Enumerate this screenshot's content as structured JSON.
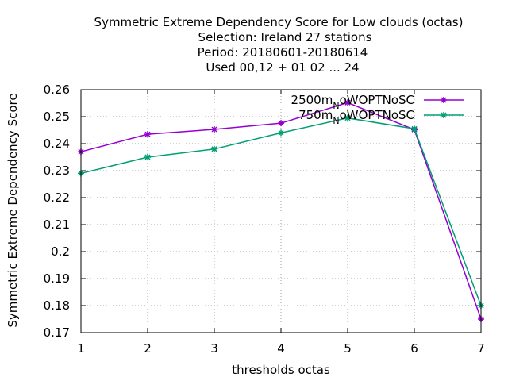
{
  "chart_data": {
    "type": "line",
    "title_lines": [
      "Symmetric Extreme Dependency Score  for Low clouds (octas)",
      "Selection: Ireland     27 stations",
      "Period: 20180601-20180614",
      "Used  00,12  + 01 02 ... 24"
    ],
    "xlabel": "thresholds octas",
    "ylabel": "Symmetric Extreme Dependency Score",
    "x": [
      1,
      2,
      3,
      4,
      5,
      6,
      7
    ],
    "xlim": [
      1,
      7
    ],
    "ylim": [
      0.17,
      0.26
    ],
    "xticks": [
      "1",
      "2",
      "3",
      "4",
      "5",
      "6",
      "7"
    ],
    "yticks": [
      "0.17",
      "0.18",
      "0.19",
      "0.2",
      "0.21",
      "0.22",
      "0.23",
      "0.24",
      "0.25",
      "0.26"
    ],
    "grid": true,
    "legend_position": "top-right",
    "series": [
      {
        "name": "2500m_NoWOPTNoSC",
        "legend_main": "2500m",
        "legend_sub": "N",
        "legend_rest": "oWOPTNoSC",
        "color": "#9400d3",
        "values": [
          0.237,
          0.2435,
          0.2453,
          0.2476,
          0.2552,
          0.2452,
          0.175
        ]
      },
      {
        "name": "750m_NoWOPTNoSC",
        "legend_main": "750m",
        "legend_sub": "N",
        "legend_rest": "oWOPTNoSC",
        "color": "#009e73",
        "values": [
          0.229,
          0.235,
          0.238,
          0.244,
          0.2495,
          0.2455,
          0.18
        ]
      }
    ]
  }
}
